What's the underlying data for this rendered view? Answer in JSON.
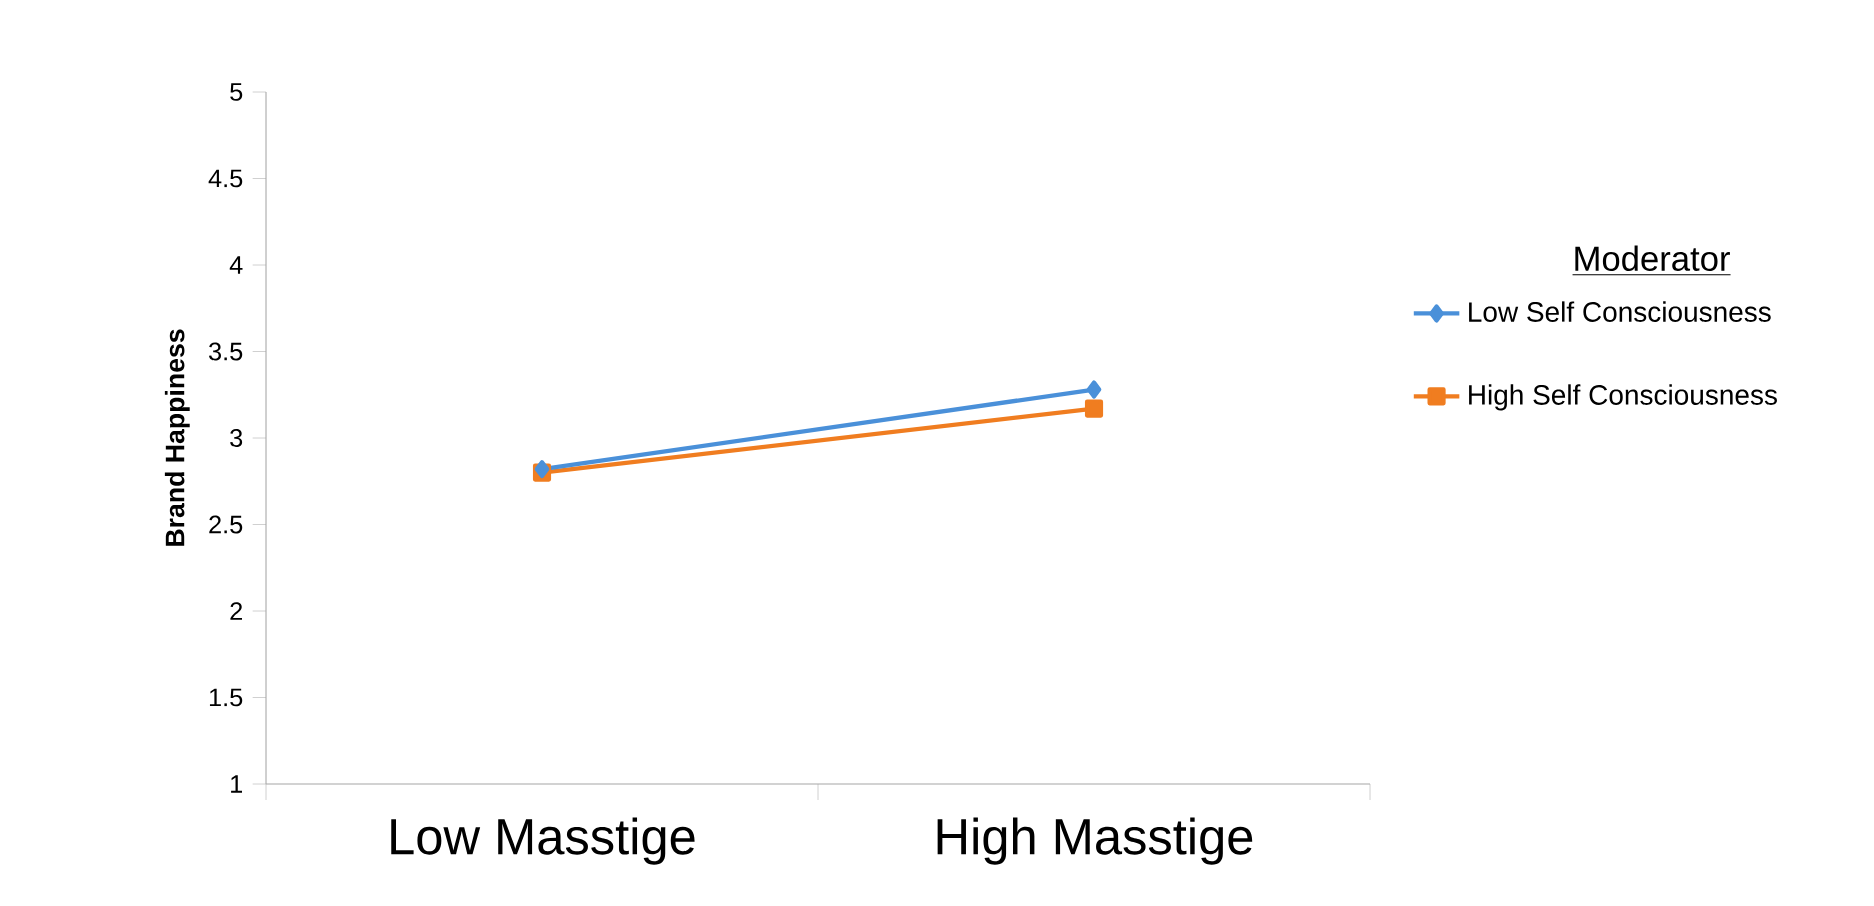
{
  "chart_data": {
    "type": "line",
    "ylabel": "Brand Happiness",
    "legend_title": "Moderator",
    "categories": [
      "Low Masstige",
      "High Masstige"
    ],
    "series": [
      {
        "name": "Low Self Consciousness",
        "color": "#4a90d9",
        "values": [
          2.82,
          3.28
        ],
        "marker": "diamond"
      },
      {
        "name": "High Self Consciousness",
        "color": "#f07d20",
        "values": [
          2.8,
          3.17
        ],
        "marker": "square"
      }
    ],
    "ylim": [
      1,
      5
    ],
    "yticks": [
      1,
      1.5,
      2,
      2.5,
      3,
      3.5,
      4,
      4.5,
      5
    ],
    "grid": false,
    "legend": "right",
    "line_style": "solid"
  }
}
